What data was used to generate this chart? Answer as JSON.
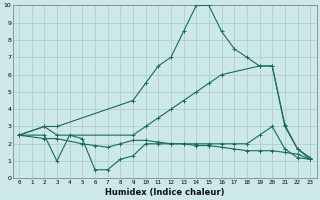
{
  "bg_color": "#cce8e8",
  "grid_color": "#aacccc",
  "line_color": "#1a6b5a",
  "curve1_x": [
    0,
    2,
    3,
    9,
    10,
    11,
    12,
    13,
    14,
    15,
    16,
    17,
    18,
    19,
    20,
    21,
    22,
    23
  ],
  "curve1_y": [
    2.5,
    3.0,
    3.0,
    4.5,
    5.5,
    6.5,
    7.0,
    8.5,
    10.0,
    10.0,
    8.5,
    7.5,
    7.0,
    6.5,
    6.5,
    3.0,
    1.7,
    1.2
  ],
  "curve2_x": [
    0,
    2,
    3,
    9,
    10,
    11,
    12,
    13,
    14,
    15,
    16,
    19,
    20,
    21,
    22,
    23
  ],
  "curve2_y": [
    2.5,
    3.0,
    2.5,
    2.5,
    3.0,
    3.5,
    4.0,
    4.5,
    5.0,
    5.5,
    6.0,
    6.5,
    6.5,
    3.1,
    1.7,
    1.1
  ],
  "curve3_x": [
    0,
    2,
    3,
    4,
    5,
    6,
    7,
    8,
    9,
    10,
    11,
    12,
    13,
    14,
    15,
    16,
    17,
    18,
    19,
    20,
    21,
    22,
    23
  ],
  "curve3_y": [
    2.5,
    2.5,
    1.0,
    2.5,
    2.3,
    0.5,
    0.5,
    1.1,
    1.3,
    2.0,
    2.0,
    2.0,
    2.0,
    2.0,
    2.0,
    2.0,
    2.0,
    2.0,
    2.5,
    3.0,
    1.7,
    1.2,
    1.1
  ],
  "curve4_x": [
    0,
    2,
    3,
    5,
    6,
    7,
    8,
    9,
    10,
    11,
    12,
    13,
    14,
    15,
    16,
    17,
    18,
    19,
    20,
    21,
    22,
    23
  ],
  "curve4_y": [
    2.5,
    2.3,
    2.3,
    2.0,
    1.9,
    1.8,
    2.0,
    2.2,
    2.2,
    2.1,
    2.0,
    2.0,
    1.9,
    1.9,
    1.8,
    1.7,
    1.6,
    1.6,
    1.6,
    1.5,
    1.4,
    1.1
  ],
  "xlabel": "Humidex (Indice chaleur)",
  "xlim": [
    -0.5,
    23.5
  ],
  "ylim": [
    0,
    10
  ],
  "xticks": [
    0,
    1,
    2,
    3,
    4,
    5,
    6,
    7,
    8,
    9,
    10,
    11,
    12,
    13,
    14,
    15,
    16,
    17,
    18,
    19,
    20,
    21,
    22,
    23
  ],
  "yticks": [
    0,
    1,
    2,
    3,
    4,
    5,
    6,
    7,
    8,
    9,
    10
  ]
}
